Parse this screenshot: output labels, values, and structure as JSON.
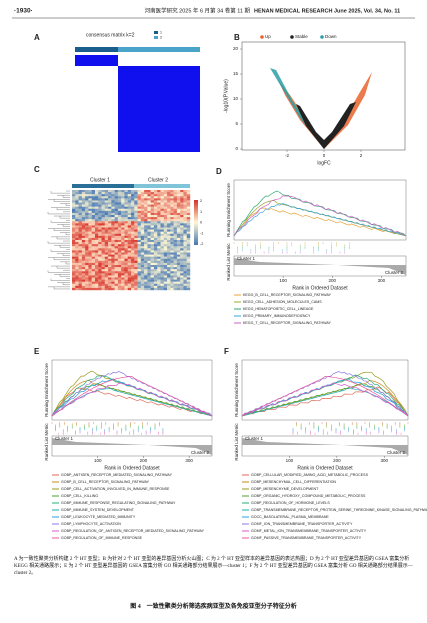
{
  "header": {
    "page_number": "·1930·",
    "journal": "河南医学研究 2025 年 6 月第 34 卷第 11 期",
    "journal_en": "HENAN MEDICAL RESEARCH June 2025, Vol. 34, No. 11"
  },
  "panels": {
    "a": {
      "label": "A",
      "title": "consensus matrix k=2",
      "legend": [
        "1",
        "2"
      ]
    },
    "b": {
      "label": "B",
      "legend": [
        {
          "label": "Up",
          "color": "#e8642c"
        },
        {
          "label": "Stable",
          "color": "#222222"
        },
        {
          "label": "Down",
          "color": "#2a9fa8"
        }
      ],
      "y_label": "-log10(P.Value)",
      "x_label": "logFC",
      "yticks": [
        "0",
        "5",
        "10",
        "15",
        "20"
      ],
      "xticks": [
        "-2",
        "0",
        "2"
      ]
    },
    "c": {
      "label": "C",
      "clusters": [
        "Cluster 1",
        "Cluster 2"
      ],
      "scale": [
        "2",
        "1",
        "0",
        "-1",
        "-2"
      ]
    },
    "d": {
      "label": "D",
      "y_label_top": "Running Enrichment Score",
      "y_label_bottom": "Ranked List Metric",
      "x_label": "Rank in Ordered Dataset",
      "xticks": [
        "100",
        "200",
        "300"
      ],
      "clusters": [
        "Cluster 1",
        "Cluster 2"
      ],
      "legend": [
        {
          "label": "KEGG_B_CELL_RECEPTOR_SIGNALING_PATHWAY",
          "color": "#e8a33a"
        },
        {
          "label": "KEGG_CELL_ADHESION_MOLECULES_CAMS",
          "color": "#9aa82c"
        },
        {
          "label": "KEGG_HEMATOPOIETIC_CELL_LINEAGE",
          "color": "#2faa6e"
        },
        {
          "label": "KEGG_PRIMARY_IMMUNODEFICIENCY",
          "color": "#3aa6d8"
        },
        {
          "label": "KEGG_T_CELL_RECEPTOR_SIGNALING_PATHWAY",
          "color": "#c964c9"
        }
      ]
    },
    "e": {
      "label": "E",
      "y_label_top": "Running Enrichment Score",
      "y_label_bottom": "Ranked List Metric",
      "x_label": "Rank in Ordered Dataset",
      "xticks": [
        "100",
        "200",
        "300"
      ],
      "clusters": [
        "Cluster 1",
        "Cluster 2"
      ],
      "legend": [
        {
          "label": "GOBP_ANTIGEN_RECEPTOR_MEDIATED_SIGNALING_PATHWAY",
          "color": "#e06a5a"
        },
        {
          "label": "GOBP_B_CELL_RECEPTOR_SIGNALING_PATHWAY",
          "color": "#c98a1e"
        },
        {
          "label": "GOBP_CELL_ACTIVATION_INVOLVED_IN_IMMUNE_RESPONSE",
          "color": "#9a9a1e"
        },
        {
          "label": "GOBP_CELL_KILLING",
          "color": "#4aa52e"
        },
        {
          "label": "GOBP_IMMUNE_RESPONSE_REGULATING_SIGNALING_PATHWAY",
          "color": "#2aae7a"
        },
        {
          "label": "GOBP_IMMUNE_SYSTEM_DEVELOPMENT",
          "color": "#22adb0"
        },
        {
          "label": "GOBP_LEUKOCYTE_MEDIATED_IMMUNITY",
          "color": "#2a9fe0"
        },
        {
          "label": "GOBP_LYMPHOCYTE_ACTIVATION",
          "color": "#8a7ae8"
        },
        {
          "label": "GOBP_REGULATION_OF_ANTIGEN_RECEPTOR_MEDIATED_SIGNALING_PATHWAY",
          "color": "#d85ad0"
        },
        {
          "label": "GOBP_REGULATION_OF_IMMUNE_RESPONSE",
          "color": "#e85a9a"
        }
      ]
    },
    "f": {
      "label": "F",
      "y_label_top": "Running Enrichment Score",
      "y_label_bottom": "Ranked List Metric",
      "x_label": "Rank in Ordered Dataset",
      "xticks": [
        "100",
        "200",
        "300"
      ],
      "clusters": [
        "Cluster 1",
        "Cluster 2"
      ],
      "legend": [
        {
          "label": "GOBP_CELLULAR_MODIFIED_AMINO_ACID_METABOLIC_PROCESS",
          "color": "#e06a5a"
        },
        {
          "label": "GOBP_MESENCHYMAL_CELL_DIFFERENTIATION",
          "color": "#c98a1e"
        },
        {
          "label": "GOBP_MESENCHYME_DEVELOPMENT",
          "color": "#9a9a1e"
        },
        {
          "label": "GOBP_ORGANIC_HYDROXY_COMPOUND_METABOLIC_PROCESS",
          "color": "#4aa52e"
        },
        {
          "label": "GOBP_REGULATION_OF_HORMONE_LEVELS",
          "color": "#2aae7a"
        },
        {
          "label": "GOBP_TRANSMEMBRANE_RECEPTOR_PROTEIN_SERINE_THREONINE_KINASE_SIGNALING_PATHWAY",
          "color": "#22adb0"
        },
        {
          "label": "GOCC_BASOLATERAL_PLASMA_MEMBRANE",
          "color": "#2a9fe0"
        },
        {
          "label": "GOMF_ION_TRANSMEMBRANE_TRANSPORTER_ACTIVITY",
          "color": "#8a7ae8"
        },
        {
          "label": "GOMF_METAL_ION_TRANSMEMBRANE_TRANSPORTER_ACTIVITY",
          "color": "#d85ad0"
        },
        {
          "label": "GOMF_PASSIVE_TRANSMEMBRANE_TRANSPORTER_ACTIVITY",
          "color": "#e85a9a"
        }
      ]
    }
  },
  "caption": {
    "text": "A 为一致性聚类分析构建 2 个 HT 亚型；B 为针对 2 个 HT 亚型的差异基因分析火山图；C 为 2 个 HT 亚型样本的差异基因的表达热图；D 为 2 个 HT 亚型差异基因的 GSEA 富集分析 KEGG 相关通路展示；E 为 2 个 HT 亚型差异基因的 GSEA 富集分析 GO 相关通路部分结果展示—cluster 1；F 为 2 个 HT 亚型差异基因的 GSEA 富集分析 GO 相关通路部分结果展示—cluster 2。",
    "title": "图 4　一致性聚类分析筛选疾病亚型及各免疫亚型分子特征分析"
  }
}
